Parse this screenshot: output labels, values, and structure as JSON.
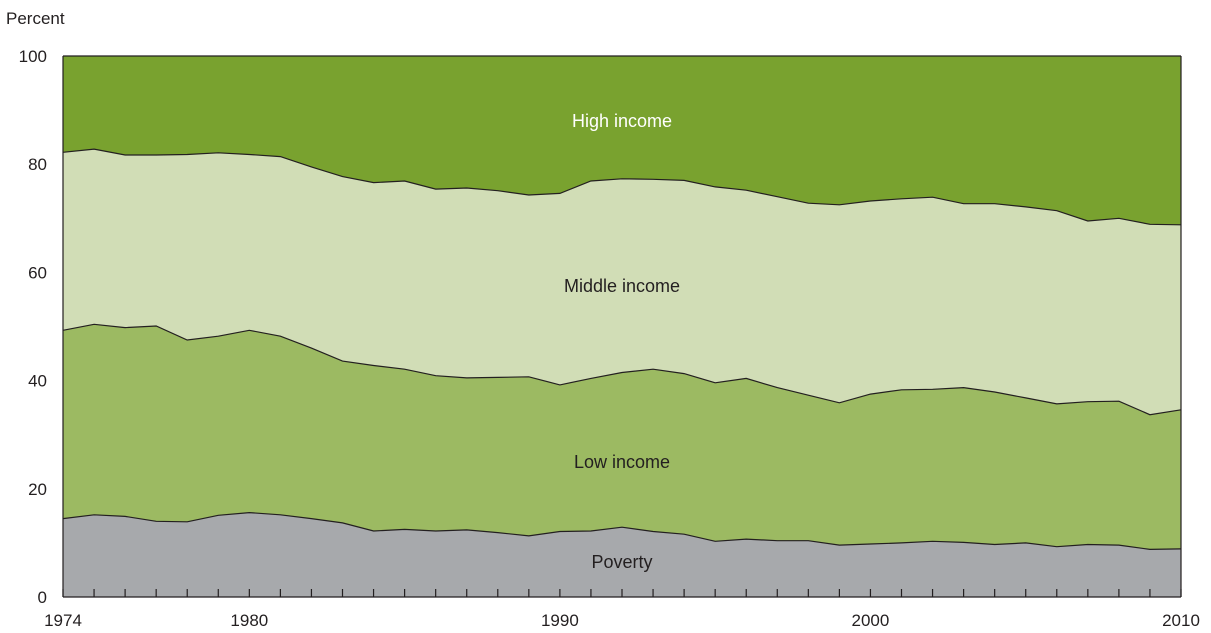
{
  "chart_data": {
    "type": "area",
    "stacked": true,
    "ylabel": "Percent",
    "xlabel": "",
    "title": "",
    "x": [
      1974,
      1975,
      1976,
      1977,
      1978,
      1979,
      1980,
      1981,
      1982,
      1983,
      1984,
      1985,
      1986,
      1987,
      1988,
      1989,
      1990,
      1991,
      1992,
      1993,
      1994,
      1995,
      1996,
      1997,
      1998,
      1999,
      2000,
      2001,
      2002,
      2003,
      2004,
      2005,
      2006,
      2007,
      2008,
      2009,
      2010
    ],
    "xlim": [
      1974,
      2010
    ],
    "ylim": [
      0,
      100
    ],
    "yticks": [
      0,
      20,
      40,
      60,
      80,
      100
    ],
    "xtick_labels": [
      1974,
      1980,
      1990,
      2000,
      2010
    ],
    "minor_xticks_every_year": true,
    "grid": false,
    "cumulative_boundaries": {
      "poverty_top": [
        14.5,
        15.2,
        14.9,
        14.0,
        13.9,
        15.1,
        15.6,
        15.2,
        14.5,
        13.7,
        12.2,
        12.5,
        12.2,
        12.4,
        11.9,
        11.3,
        12.1,
        12.2,
        12.9,
        12.1,
        11.6,
        10.3,
        10.7,
        10.4,
        10.4,
        9.6,
        9.8,
        10.0,
        10.3,
        10.1,
        9.7,
        10.0,
        9.3,
        9.7,
        9.6,
        8.8,
        8.9
      ],
      "low_top": [
        49.3,
        50.4,
        49.8,
        50.1,
        47.5,
        48.2,
        49.3,
        48.2,
        46.0,
        43.6,
        42.8,
        42.1,
        40.9,
        40.5,
        40.6,
        40.7,
        39.2,
        40.4,
        41.5,
        42.1,
        41.3,
        39.6,
        40.4,
        38.7,
        37.3,
        35.9,
        37.5,
        38.3,
        38.4,
        38.7,
        37.9,
        36.8,
        35.7,
        36.1,
        36.2,
        33.7,
        34.6
      ],
      "middle_top": [
        82.2,
        82.8,
        81.7,
        81.7,
        81.8,
        82.1,
        81.8,
        81.4,
        79.5,
        77.7,
        76.6,
        76.9,
        75.4,
        75.6,
        75.1,
        74.3,
        74.6,
        76.9,
        77.3,
        77.2,
        77.0,
        75.8,
        75.2,
        74.0,
        72.8,
        72.5,
        73.2,
        73.6,
        73.9,
        72.7,
        72.7,
        72.1,
        71.4,
        69.5,
        70.0,
        68.9,
        68.8
      ]
    },
    "series": [
      {
        "name": "Poverty",
        "color": "#a7a9ac"
      },
      {
        "name": "Low income",
        "color": "#9cba62"
      },
      {
        "name": "Middle income",
        "color": "#d1ddb6"
      },
      {
        "name": "High income",
        "color": "#79a22f"
      }
    ],
    "label_positions_data": [
      {
        "series": "High income",
        "x": 1992,
        "y": 88,
        "text_color": "#ffffff"
      },
      {
        "series": "Middle income",
        "x": 1992,
        "y": 57.5,
        "text_color": "#231f20"
      },
      {
        "series": "Low income",
        "x": 1992,
        "y": 25,
        "text_color": "#231f20"
      },
      {
        "series": "Poverty",
        "x": 1992,
        "y": 6.5,
        "text_color": "#231f20"
      }
    ],
    "line_color": "#231f20"
  }
}
